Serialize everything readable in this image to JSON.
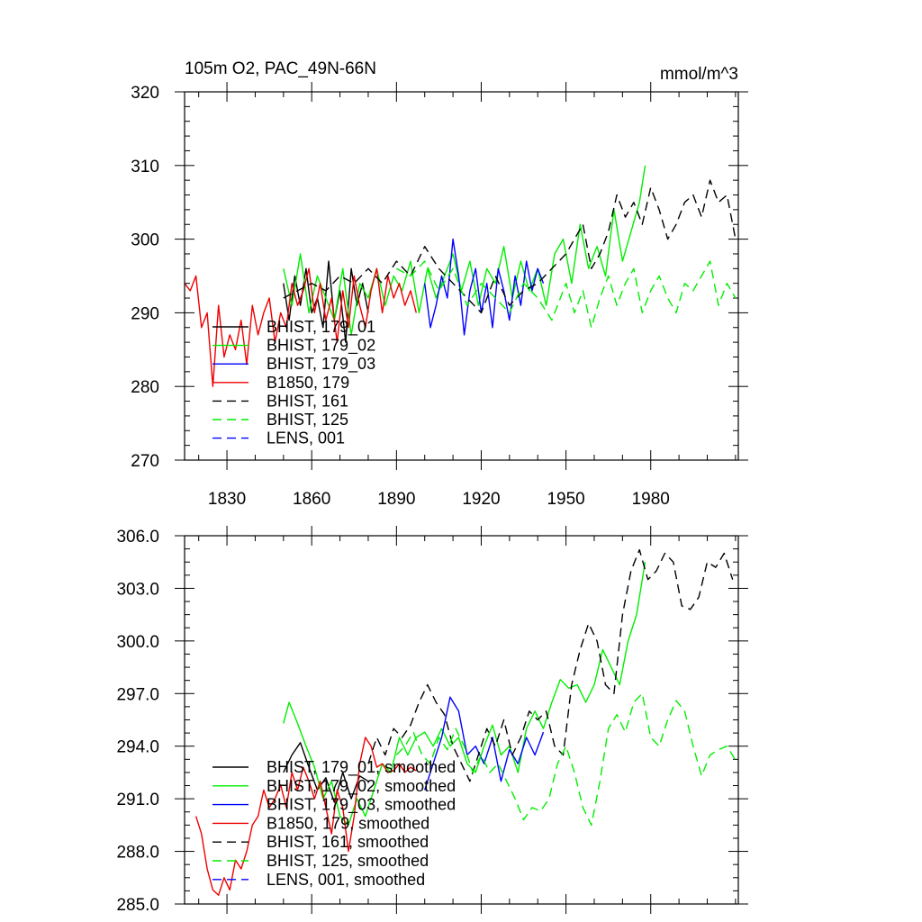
{
  "chart_data": [
    {
      "type": "line",
      "title": "105m O2, PAC_49N-66N",
      "units": "mmol/m^3",
      "xlabel": "",
      "ylabel": "",
      "xlim": [
        1815,
        2011
      ],
      "ylim": [
        270,
        320
      ],
      "x_ticks": [
        1830,
        1860,
        1890,
        1920,
        1950,
        1980
      ],
      "x_tick_labels": [
        "1830",
        "1860",
        "1890",
        "1920",
        "1950",
        "1980"
      ],
      "y_ticks": [
        270,
        280,
        290,
        300,
        310,
        320
      ],
      "y_tick_labels": [
        "270",
        "280",
        "290",
        "300",
        "310",
        "320"
      ],
      "legend_position": "lower-left",
      "series": [
        {
          "name": "BHIST, 179_01",
          "color": "#000000",
          "dash": "solid",
          "x": [
            1850,
            1852,
            1854,
            1856,
            1858,
            1860,
            1862,
            1864,
            1866,
            1868,
            1870,
            1872,
            1874,
            1876,
            1878,
            1880
          ],
          "values": [
            294,
            289,
            295,
            291,
            296,
            290,
            292,
            288,
            297,
            289,
            293,
            286,
            296,
            291,
            294,
            290
          ]
        },
        {
          "name": "BHIST, 179_02",
          "color": "#00ee00",
          "dash": "solid",
          "x": [
            1850,
            1853,
            1856,
            1859,
            1862,
            1865,
            1868,
            1871,
            1874,
            1877,
            1880,
            1883,
            1886,
            1889,
            1892,
            1895,
            1898,
            1901,
            1904,
            1907,
            1910,
            1913,
            1916,
            1919,
            1922,
            1925,
            1928,
            1931,
            1934,
            1937,
            1940,
            1943,
            1946,
            1949,
            1952,
            1955,
            1958,
            1961,
            1964,
            1967,
            1970,
            1973,
            1976,
            1978
          ],
          "values": [
            296,
            291,
            298,
            290,
            295,
            292,
            289,
            296,
            287,
            294,
            292,
            296,
            291,
            295,
            293,
            297,
            290,
            296,
            292,
            295,
            298,
            293,
            297,
            291,
            296,
            294,
            299,
            292,
            297,
            293,
            296,
            291,
            298,
            300,
            294,
            302,
            296,
            299,
            295,
            304,
            297,
            301,
            305,
            310
          ]
        },
        {
          "name": "BHIST, 179_03",
          "color": "#0000ff",
          "dash": "solid",
          "x": [
            1900,
            1902,
            1904,
            1906,
            1908,
            1910,
            1912,
            1914,
            1916,
            1918,
            1920,
            1922,
            1924,
            1926,
            1928,
            1930,
            1932,
            1934,
            1936,
            1938,
            1940,
            1942
          ],
          "values": [
            294,
            288,
            291,
            295,
            292,
            300,
            295,
            287,
            293,
            296,
            290,
            294,
            288,
            296,
            293,
            289,
            295,
            291,
            297,
            293,
            296,
            294
          ]
        },
        {
          "name": "B1850, 179",
          "color": "#ee0000",
          "dash": "solid",
          "x": [
            1815,
            1817,
            1819,
            1821,
            1823,
            1825,
            1827,
            1829,
            1831,
            1833,
            1835,
            1837,
            1839,
            1841,
            1843,
            1845,
            1847,
            1849,
            1851,
            1853,
            1855,
            1857,
            1859,
            1861,
            1863,
            1865,
            1867,
            1869,
            1871,
            1873,
            1875,
            1877,
            1879,
            1881,
            1883,
            1885,
            1887,
            1889,
            1891,
            1893,
            1895,
            1897
          ],
          "values": [
            294,
            293,
            295,
            288,
            290,
            280,
            291,
            284,
            287,
            285,
            289,
            283,
            291,
            287,
            290,
            292,
            286,
            290,
            288,
            294,
            291,
            293,
            296,
            290,
            294,
            289,
            292,
            286,
            293,
            288,
            295,
            291,
            288,
            293,
            296,
            290,
            295,
            292,
            294,
            291,
            293,
            290
          ]
        },
        {
          "name": "BHIST, 161",
          "color": "#000000",
          "dash": "dashed",
          "x": [
            1850,
            1855,
            1860,
            1865,
            1870,
            1875,
            1880,
            1885,
            1890,
            1895,
            1900,
            1905,
            1910,
            1915,
            1920,
            1925,
            1930,
            1935,
            1940,
            1945,
            1950,
            1953,
            1956,
            1959,
            1962,
            1965,
            1968,
            1971,
            1974,
            1977,
            1980,
            1983,
            1986,
            1989,
            1992,
            1995,
            1998,
            2001,
            2004,
            2007,
            2010
          ],
          "values": [
            292,
            293,
            294,
            293,
            295,
            294,
            296,
            294,
            297,
            295,
            299,
            296,
            294,
            292,
            290,
            295,
            291,
            293,
            294,
            296,
            298,
            300,
            302,
            296,
            298,
            301,
            306,
            303,
            305,
            302,
            307,
            304,
            300,
            302,
            305,
            306,
            303,
            308,
            305,
            306,
            300
          ]
        },
        {
          "name": "BHIST, 125",
          "color": "#00ee00",
          "dash": "dashed",
          "x": [
            1890,
            1895,
            1900,
            1905,
            1910,
            1915,
            1920,
            1925,
            1930,
            1935,
            1940,
            1945,
            1950,
            1953,
            1956,
            1959,
            1962,
            1965,
            1968,
            1971,
            1974,
            1977,
            1980,
            1983,
            1986,
            1989,
            1992,
            1995,
            1998,
            2001,
            2004,
            2007,
            2010
          ],
          "values": [
            296,
            295,
            297,
            293,
            296,
            291,
            294,
            292,
            290,
            294,
            292,
            289,
            294,
            290,
            293,
            288,
            292,
            295,
            291,
            294,
            296,
            290,
            293,
            295,
            292,
            290,
            294,
            293,
            295,
            297,
            291,
            294,
            292
          ]
        },
        {
          "name": "LENS, 001",
          "color": "#0000ff",
          "dash": "dashed",
          "x": [],
          "values": []
        }
      ]
    },
    {
      "type": "line",
      "title": "",
      "xlabel": "",
      "ylabel": "",
      "xlim": [
        1815,
        2011
      ],
      "ylim": [
        285,
        306
      ],
      "x_ticks": [
        1830,
        1860,
        1890,
        1920,
        1950,
        1980
      ],
      "y_ticks": [
        285,
        288,
        291,
        294,
        297,
        300,
        303,
        306
      ],
      "y_tick_labels": [
        "285.0",
        "288.0",
        "291.0",
        "294.0",
        "297.0",
        "300.0",
        "303.0",
        "306.0"
      ],
      "legend_position": "lower-left",
      "series": [
        {
          "name": "BHIST, 179_01, smoothed",
          "color": "#000000",
          "dash": "solid",
          "x": [
            1850,
            1853,
            1856,
            1859,
            1862,
            1865,
            1868,
            1871,
            1874,
            1877,
            1880
          ],
          "values": [
            292.5,
            293.5,
            294.2,
            292.8,
            291.5,
            292.2,
            290.8,
            292.5,
            291.0,
            292.3,
            292.0
          ]
        },
        {
          "name": "BHIST, 179_02, smoothed",
          "color": "#00ee00",
          "dash": "solid",
          "x": [
            1850,
            1852,
            1855,
            1858,
            1861,
            1864,
            1867,
            1870,
            1873,
            1876,
            1879,
            1882,
            1885,
            1888,
            1891,
            1894,
            1897,
            1900,
            1903,
            1906,
            1909,
            1912,
            1915,
            1918,
            1921,
            1924,
            1927,
            1930,
            1933,
            1936,
            1939,
            1942,
            1945,
            1948,
            1951,
            1954,
            1957,
            1960,
            1963,
            1966,
            1969,
            1972,
            1975,
            1978
          ],
          "values": [
            295.3,
            296.5,
            295.3,
            294.0,
            292.8,
            291.0,
            292.0,
            290.0,
            289.5,
            291.0,
            290.0,
            291.5,
            293.0,
            292.5,
            294.5,
            293.5,
            294.5,
            294.8,
            294.0,
            295.0,
            294.0,
            294.5,
            293.0,
            292.5,
            294.0,
            295.2,
            293.5,
            294.0,
            292.5,
            295.0,
            296.0,
            295.0,
            296.5,
            297.8,
            297.3,
            297.5,
            296.5,
            297.5,
            299.5,
            298.5,
            297.5,
            300.0,
            301.5,
            304.5
          ]
        },
        {
          "name": "BHIST, 179_03, smoothed",
          "color": "#0000ff",
          "dash": "solid",
          "x": [
            1900,
            1903,
            1906,
            1909,
            1912,
            1915,
            1918,
            1921,
            1924,
            1927,
            1930,
            1933,
            1936,
            1939,
            1942
          ],
          "values": [
            291.5,
            293.0,
            294.5,
            296.8,
            296.0,
            293.5,
            294.0,
            293.0,
            294.5,
            292.0,
            293.8,
            293.0,
            294.5,
            293.5,
            294.8
          ]
        },
        {
          "name": "B1850, 179, smoothed",
          "color": "#ee0000",
          "dash": "solid",
          "x": [
            1819,
            1821,
            1823,
            1825,
            1827,
            1829,
            1831,
            1833,
            1835,
            1837,
            1839,
            1841,
            1843,
            1845,
            1847,
            1849,
            1851,
            1853,
            1855,
            1857,
            1859,
            1861,
            1863,
            1865,
            1867,
            1869,
            1871,
            1873,
            1875,
            1877,
            1879,
            1881,
            1883,
            1885,
            1887,
            1889,
            1891,
            1893,
            1895,
            1897
          ],
          "values": [
            290.0,
            289.0,
            287.0,
            285.8,
            285.5,
            286.5,
            285.8,
            287.5,
            287.0,
            288.0,
            289.5,
            290.0,
            291.5,
            290.5,
            291.0,
            291.8,
            290.5,
            292.5,
            291.5,
            292.8,
            292.0,
            291.0,
            292.0,
            290.5,
            289.0,
            291.5,
            290.5,
            288.0,
            290.0,
            293.0,
            294.5,
            294.0,
            292.8,
            293.0,
            292.5,
            292.6,
            293.0,
            292.5,
            292.8,
            292.6
          ]
        },
        {
          "name": "BHIST, 161, smoothed",
          "color": "#000000",
          "dash": "dashed",
          "x": [
            1880,
            1883,
            1886,
            1889,
            1892,
            1895,
            1898,
            1901,
            1904,
            1907,
            1910,
            1913,
            1916,
            1919,
            1922,
            1925,
            1928,
            1931,
            1934,
            1937,
            1940,
            1943,
            1946,
            1949,
            1952,
            1955,
            1958,
            1961,
            1964,
            1967,
            1970,
            1973,
            1976,
            1979,
            1982,
            1985,
            1988,
            1991,
            1994,
            1997,
            2000,
            2003,
            2006,
            2009
          ],
          "values": [
            293.0,
            294.5,
            293.5,
            295.0,
            294.5,
            295.2,
            296.5,
            297.5,
            296.5,
            295.8,
            294.0,
            293.0,
            292.0,
            293.5,
            295.0,
            294.0,
            295.5,
            293.5,
            294.5,
            296.0,
            295.5,
            296.0,
            294.0,
            293.5,
            297.5,
            299.5,
            301.0,
            300.0,
            297.5,
            297.0,
            301.5,
            304.0,
            305.2,
            303.5,
            304.0,
            305.0,
            304.5,
            302.0,
            301.8,
            302.5,
            304.5,
            304.2,
            305.0,
            303.5
          ]
        },
        {
          "name": "BHIST, 125, smoothed",
          "color": "#00ee00",
          "dash": "dashed",
          "x": [
            1890,
            1893,
            1896,
            1899,
            1902,
            1905,
            1908,
            1911,
            1914,
            1917,
            1920,
            1923,
            1926,
            1929,
            1932,
            1935,
            1938,
            1941,
            1944,
            1947,
            1950,
            1953,
            1956,
            1959,
            1962,
            1965,
            1968,
            1971,
            1974,
            1977,
            1980,
            1983,
            1986,
            1989,
            1992,
            1995,
            1998,
            2001,
            2004,
            2007,
            2010
          ],
          "values": [
            293.5,
            294.0,
            294.8,
            293.5,
            293.0,
            294.5,
            293.8,
            295.0,
            294.0,
            292.5,
            293.5,
            292.5,
            293.0,
            292.0,
            291.0,
            289.8,
            290.5,
            290.3,
            291.0,
            293.0,
            294.0,
            292.5,
            290.5,
            289.5,
            292.0,
            295.0,
            295.8,
            294.8,
            296.5,
            297.0,
            294.5,
            294.0,
            295.5,
            296.6,
            296.0,
            294.0,
            292.3,
            293.5,
            293.8,
            294.0,
            293.2
          ]
        },
        {
          "name": "LENS, 001, smoothed",
          "color": "#0000ff",
          "dash": "dashed",
          "x": [],
          "values": []
        }
      ]
    }
  ]
}
